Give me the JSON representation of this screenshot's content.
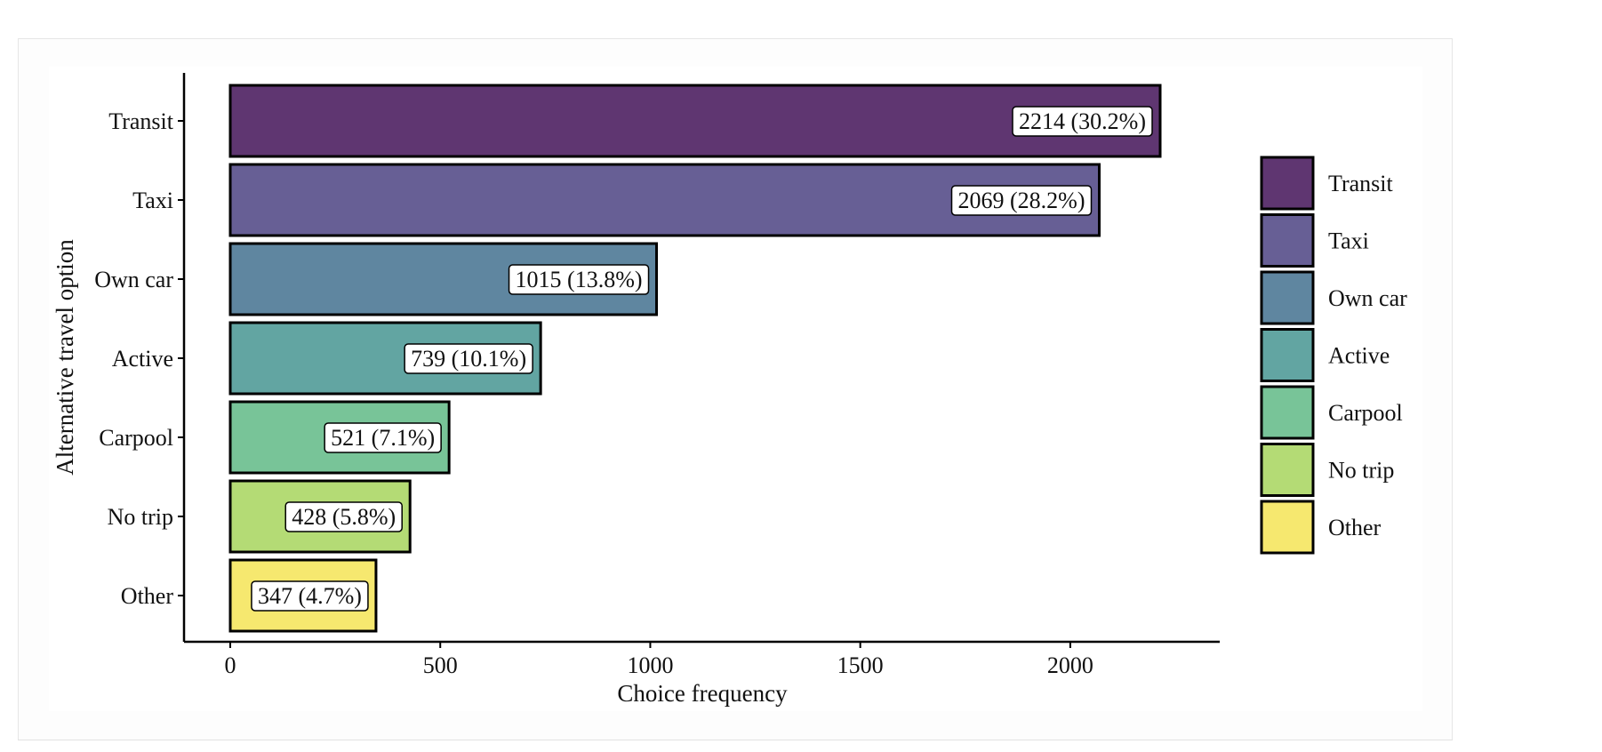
{
  "chart_data": {
    "type": "bar",
    "orientation": "horizontal",
    "categories": [
      "Transit",
      "Taxi",
      "Own car",
      "Active",
      "Carpool",
      "No trip",
      "Other"
    ],
    "values": [
      2214,
      2069,
      1015,
      739,
      521,
      428,
      347
    ],
    "data_labels": [
      "2214 (30.2%)",
      "2069 (28.2%)",
      "1015 (13.8%)",
      "739 (10.1%)",
      "521 (7.1%)",
      "428 (5.8%)",
      "347 (4.7%)"
    ],
    "colors": [
      "#5f3671",
      "#675f95",
      "#5f86a0",
      "#62a5a2",
      "#78c498",
      "#b4db75",
      "#f6e86f"
    ],
    "xlabel": "Choice frequency",
    "ylabel": "Alternative travel option",
    "xlim": [
      0,
      2350
    ],
    "xticks": [
      0,
      500,
      1000,
      1500,
      2000
    ],
    "xtick_labels": [
      "0",
      "500",
      "1000",
      "1500",
      "2000"
    ],
    "legend": {
      "position": "right",
      "entries": [
        "Transit",
        "Taxi",
        "Own car",
        "Active",
        "Carpool",
        "No trip",
        "Other"
      ]
    },
    "grid": false
  }
}
